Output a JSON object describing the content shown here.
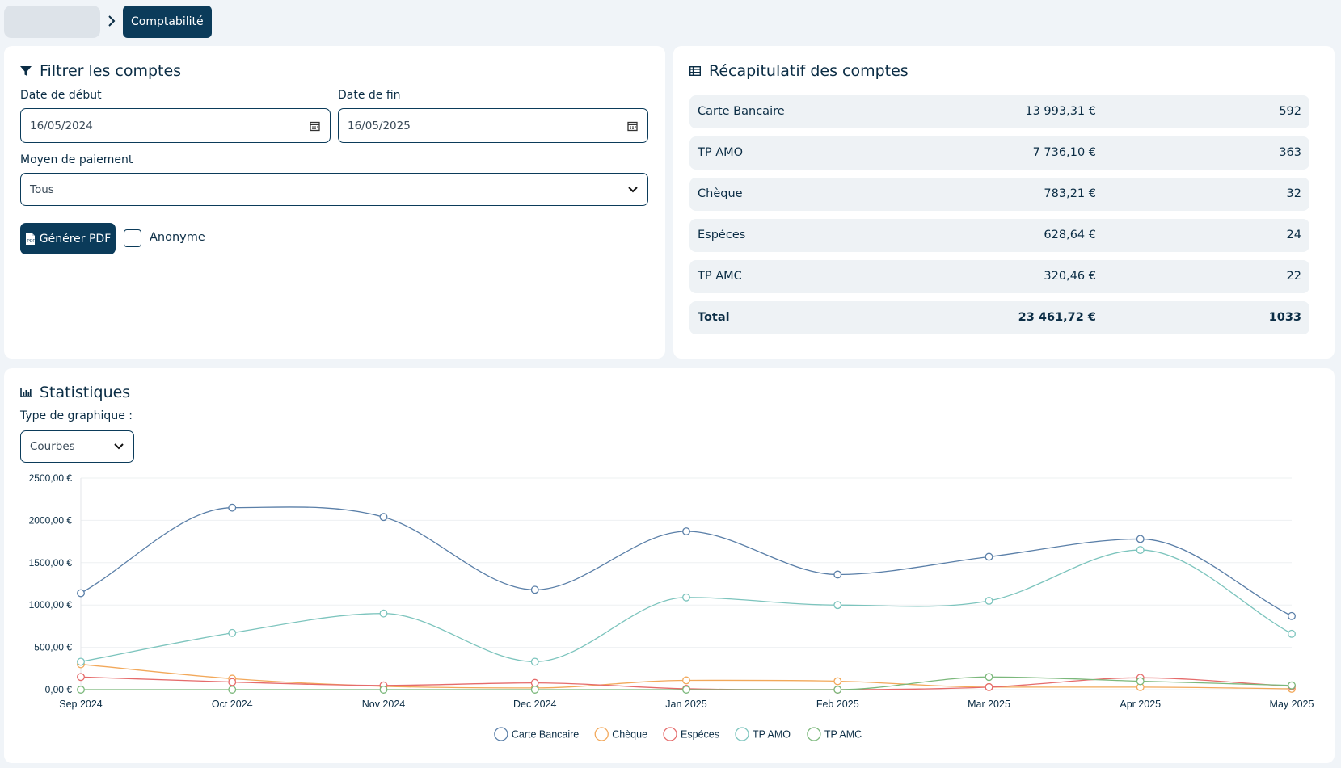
{
  "breadcrumb": {
    "current": "Comptabilité"
  },
  "filter": {
    "title": "Filtrer les comptes",
    "start_label": "Date de début",
    "start_value": "16/05/2024",
    "end_label": "Date de fin",
    "end_value": "16/05/2025",
    "payment_label": "Moyen de paiement",
    "payment_value": "Tous",
    "pdf_button": "Générer PDF",
    "anonymous_label": "Anonyme"
  },
  "summary": {
    "title": "Récapitulatif des comptes",
    "rows": [
      {
        "name": "Carte Bancaire",
        "amount": "13 993,31 €",
        "count": "592"
      },
      {
        "name": "TP AMO",
        "amount": "7 736,10 €",
        "count": "363"
      },
      {
        "name": "Chèque",
        "amount": "783,21 €",
        "count": "32"
      },
      {
        "name": "Espéces",
        "amount": "628,64 €",
        "count": "24"
      },
      {
        "name": "TP AMC",
        "amount": "320,46 €",
        "count": "22"
      }
    ],
    "total": {
      "name": "Total",
      "amount": "23 461,72 €",
      "count": "1033"
    }
  },
  "stats": {
    "title": "Statistiques",
    "type_label": "Type de graphique :",
    "type_value": "Courbes"
  },
  "colors": {
    "primary": "#0b3b5a",
    "carte": "#5a7fa8",
    "cheque": "#f2a85a",
    "especes": "#e56b6b",
    "tpamo": "#7cc4bd",
    "tpamc": "#7bb87b"
  },
  "chart_data": {
    "type": "line",
    "smooth": true,
    "x": [
      "Sep 2024",
      "Oct 2024",
      "Nov 2024",
      "Dec 2024",
      "Jan 2025",
      "Feb 2025",
      "Mar 2025",
      "Apr 2025",
      "May 2025"
    ],
    "y_ticks": [
      "0,00 €",
      "500,00 €",
      "1000,00 €",
      "1500,00 €",
      "2000,00 €",
      "2500,00 €"
    ],
    "ylim": [
      0,
      2500
    ],
    "grid": true,
    "legend": "bottom",
    "series": [
      {
        "name": "Carte Bancaire",
        "color": "#5a7fa8",
        "values": [
          1140,
          2150,
          2040,
          1180,
          1870,
          1360,
          1570,
          1780,
          870
        ]
      },
      {
        "name": "Chèque",
        "color": "#f2a85a",
        "values": [
          300,
          130,
          40,
          20,
          110,
          100,
          30,
          30,
          10
        ]
      },
      {
        "name": "Espéces",
        "color": "#e56b6b",
        "values": [
          150,
          90,
          50,
          80,
          10,
          0,
          30,
          140,
          40
        ]
      },
      {
        "name": "TP AMO",
        "color": "#7cc4bd",
        "values": [
          330,
          670,
          900,
          330,
          1090,
          1000,
          1050,
          1650,
          660
        ]
      },
      {
        "name": "TP AMC",
        "color": "#7bb87b",
        "values": [
          0,
          0,
          0,
          0,
          0,
          0,
          150,
          100,
          50
        ]
      }
    ]
  }
}
